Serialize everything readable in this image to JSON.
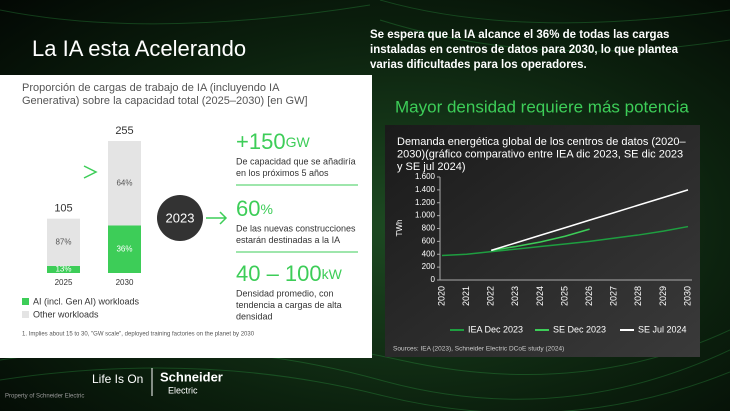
{
  "title": "La  IA esta Acelerando",
  "headline": [
    "Se espera que la IA alcance el 36% de todas las cargas",
    "instaladas en centros de datos para 2030, lo que plantea",
    "varias dificultades para los operadores."
  ],
  "chart_data": [
    {
      "type": "bar",
      "title": [
        "Proporción de cargas de trabajo de IA (incluyendo IA",
        "Generativa) sobre la capacidad total (2025–2030) [en GW]"
      ],
      "categories": [
        "2025",
        "2030"
      ],
      "totals": [
        105,
        255
      ],
      "series": [
        {
          "name": "AI (incl. Gen AI) workloads",
          "color": "#3dcd58",
          "values": [
            13,
            36
          ],
          "value_labels": [
            "13%",
            "36%"
          ]
        },
        {
          "name": "Other workloads",
          "color": "#e4e4e4",
          "values": [
            87,
            64
          ],
          "value_labels": [
            "87%",
            "64%"
          ]
        }
      ],
      "footnote": "1. Implies about 15 to 30, \"GW scale\", deployed training factories on the planet by 2030"
    },
    {
      "type": "line",
      "title": [
        "Demanda energética global de los centros de datos (2020–",
        "2030)(gráfico comparativo entre IEA dic 2023, SE dic 2023",
        "y SE jul 2024)"
      ],
      "ylabel": "TWh",
      "x": [
        2020,
        2021,
        2022,
        2023,
        2024,
        2025,
        2026,
        2027,
        2028,
        2029,
        2030
      ],
      "xlim": [
        2020,
        2030
      ],
      "ylim": [
        0,
        1600
      ],
      "yticks": [
        0,
        200,
        400,
        600,
        800,
        {
          "value": 1000,
          "label": "1.000"
        },
        {
          "value": 1200,
          "label": "1.200"
        },
        {
          "value": 1400,
          "label": "1.400"
        },
        {
          "value": 1600,
          "label": "1.600"
        }
      ],
      "series": [
        {
          "name": "IEA Dec 2023",
          "color": "#1e9e40",
          "values": [
            380,
            400,
            440,
            480,
            520,
            560,
            600,
            650,
            700,
            760,
            830
          ]
        },
        {
          "name": "SE Dec 2023",
          "color": "#3dcd58",
          "values": [
            null,
            null,
            460,
            520,
            590,
            680,
            790,
            null,
            null,
            null,
            null
          ]
        },
        {
          "name": "SE Jul 2024",
          "color": "#ffffff",
          "values": [
            null,
            null,
            460,
            577,
            695,
            812,
            930,
            1047,
            1165,
            1282,
            1400
          ]
        }
      ]
    }
  ],
  "badge": "2023",
  "stats": [
    {
      "value": "+150",
      "unit": "GW",
      "lines": [
        "De capacidad que se añadiría",
        "en los próximos 5 años"
      ]
    },
    {
      "value": "60",
      "unit": "%",
      "lines": [
        "De las nuevas construcciones",
        "estarán destinadas a la IA"
      ]
    },
    {
      "value": "40 – 100",
      "unit": "kW",
      "lines": [
        "Densidad promedio, con",
        "tendencia a cargas de alta",
        "densidad"
      ]
    }
  ],
  "right_title": "Mayor densidad requiere más potencia",
  "source": "Sources: IEA (2023), Schneider Electric DCoE study (2024)",
  "footer": {
    "property": "Property of Schneider Electric",
    "tagline": "Life Is On",
    "logo": "Schneider",
    "logo_sub": "Electric"
  }
}
